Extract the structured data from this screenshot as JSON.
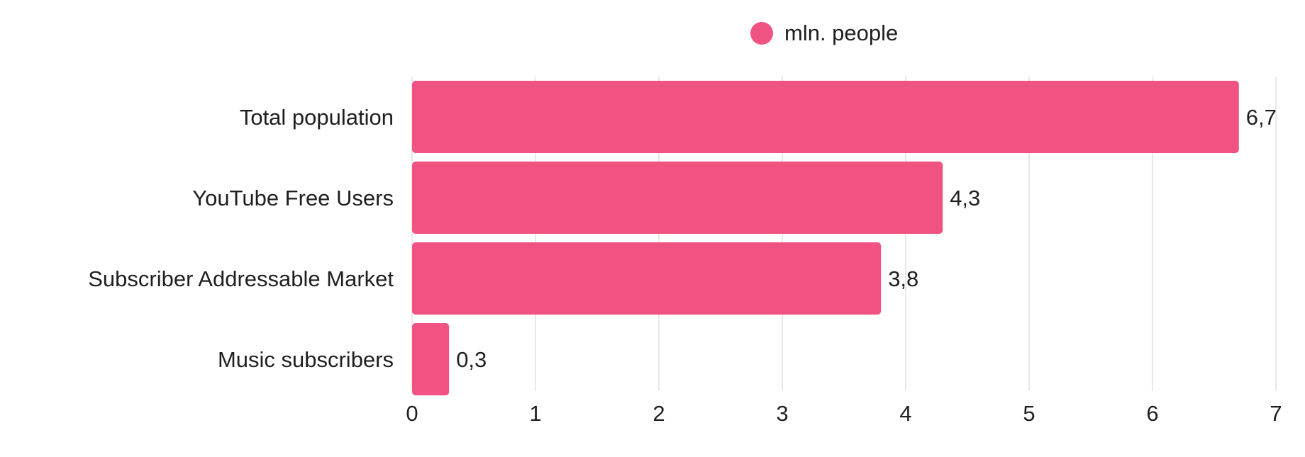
{
  "chart_data": {
    "type": "bar",
    "orientation": "horizontal",
    "categories": [
      "Total population",
      "YouTube Free Users",
      "Subscriber Addressable Market",
      "Music subscribers"
    ],
    "series": [
      {
        "name": "mln. people",
        "values": [
          6.7,
          4.3,
          3.8,
          0.3
        ],
        "data_labels": [
          "6,7",
          "4,3",
          "3,8",
          "0,3"
        ],
        "color": "#f05282"
      }
    ],
    "xlim": [
      0,
      7
    ],
    "xticks": [
      0,
      1,
      2,
      3,
      4,
      5,
      6,
      7
    ],
    "xtick_labels": [
      "0",
      "1",
      "2",
      "3",
      "4",
      "5",
      "6",
      "7"
    ],
    "grid": "vertical",
    "legend_position": "top-center",
    "title": "",
    "xlabel": "",
    "ylabel": ""
  },
  "colors": {
    "bar": "#f05282",
    "grid": "#d9d9d9",
    "text": "#1f1f1f"
  }
}
